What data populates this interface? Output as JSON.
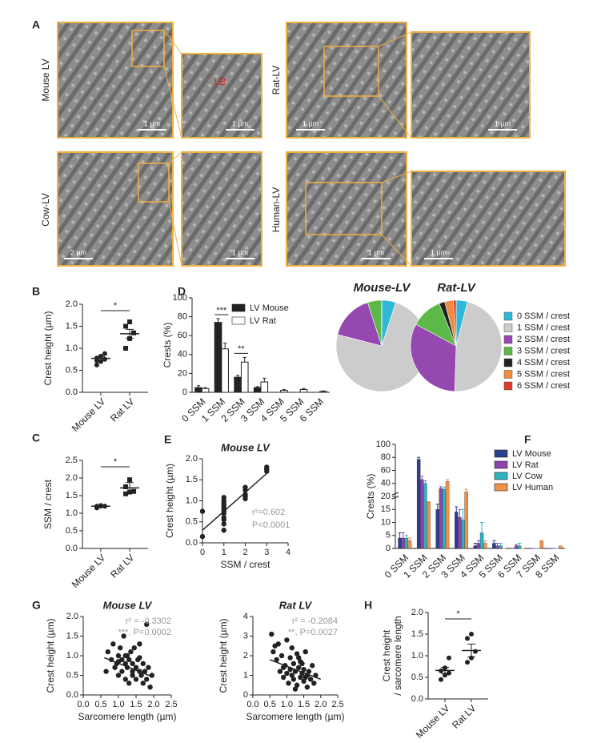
{
  "figure": {
    "panel": "A",
    "micrographs": [
      {
        "label": "Mouse LV",
        "scale_bars": [
          "1 µm",
          "1 µm"
        ],
        "inset_label": "LB"
      },
      {
        "label": "Rat-LV",
        "scale_bars": [
          "1 µm",
          "1 µm"
        ]
      },
      {
        "label": "Cow-LV",
        "scale_bars": [
          "2 µm",
          "1 µm"
        ]
      },
      {
        "label": "Human-LV",
        "scale_bars": [
          "1 µm",
          "1 µm"
        ]
      }
    ]
  },
  "chart_data": [
    {
      "panel": "B",
      "type": "dot",
      "ylabel": "Crest height (µm)",
      "categories": [
        "Mouse LV",
        "Rat LV"
      ],
      "points": [
        [
          0.62,
          0.7,
          0.75,
          0.78,
          0.82,
          0.88,
          0.72
        ],
        [
          1.0,
          1.22,
          1.35,
          1.5,
          1.6
        ]
      ],
      "means": [
        0.77,
        1.33
      ],
      "errors": [
        0.04,
        0.1
      ],
      "markers": [
        "circle",
        "square"
      ],
      "ylim": [
        0,
        2
      ],
      "yticks": [
        {
          "value": 0,
          "label": "0.0"
        },
        {
          "value": 0.5,
          "label": "0.5"
        },
        {
          "value": 1,
          "label": "1.0"
        },
        {
          "value": 1.5,
          "label": "1.5"
        },
        {
          "value": 2,
          "label": "2.0"
        }
      ],
      "significance": "*"
    },
    {
      "panel": "C",
      "type": "dot",
      "ylabel": "SSM / crest",
      "categories": [
        "Mouse LV",
        "Rat LV"
      ],
      "points": [
        [
          1.15,
          1.2,
          1.2,
          1.2,
          1.22,
          1.2
        ],
        [
          1.55,
          1.6,
          1.62,
          1.75,
          1.95
        ]
      ],
      "means": [
        1.2,
        1.72
      ],
      "errors": [
        0.02,
        0.15
      ],
      "markers": [
        "circle",
        "square"
      ],
      "ylim": [
        0,
        2.5
      ],
      "yticks": [
        {
          "value": 0,
          "label": "0.0"
        },
        {
          "value": 0.5,
          "label": "0.5"
        },
        {
          "value": 1,
          "label": "1.0"
        },
        {
          "value": 1.5,
          "label": "1.5"
        },
        {
          "value": 2,
          "label": "2.0"
        },
        {
          "value": 2.5,
          "label": "2.5"
        }
      ],
      "significance": "*"
    },
    {
      "panel": "D",
      "type": "bar",
      "ylabel": "Crests (%)",
      "categories": [
        "0 SSM",
        "1 SSM",
        "2 SSM",
        "3 SSM",
        "4 SSM",
        "5 SSM",
        "6 SSM"
      ],
      "series": [
        {
          "name": "LV Mouse",
          "color": "#222222",
          "values": [
            5,
            74,
            16,
            5,
            0,
            0,
            0
          ],
          "errors": [
            2,
            4,
            2,
            1,
            0,
            0,
            0
          ]
        },
        {
          "name": "LV Rat",
          "color": "#ffffff",
          "values": [
            4,
            46,
            32,
            11,
            2,
            3,
            1
          ],
          "errors": [
            1,
            6,
            5,
            4,
            1,
            1,
            0.5
          ]
        }
      ],
      "ylim": [
        0,
        100
      ],
      "yticks": [
        0,
        20,
        40,
        60,
        80,
        100
      ],
      "annotations": [
        {
          "category": "1 SSM",
          "text": "***"
        },
        {
          "category": "2 SSM",
          "text": "**"
        }
      ]
    },
    {
      "type": "pie",
      "categories": [
        "0 SSM / crest",
        "1 SSM / crest",
        "2 SSM / crest",
        "3 SSM / crest",
        "4 SSM / crest",
        "5 SSM / crest",
        "6 SSM / crest"
      ],
      "colors": [
        "#2fb8d8",
        "#cccccc",
        "#9448b0",
        "#5cb848",
        "#222222",
        "#f08a3c",
        "#e03a2a"
      ],
      "series": [
        {
          "name": "Mouse-LV",
          "values": [
            5,
            74,
            16,
            5,
            0,
            0,
            0
          ]
        },
        {
          "name": "Rat-LV",
          "values": [
            4,
            46,
            32,
            11,
            2,
            3,
            1
          ]
        }
      ]
    },
    {
      "panel": "E",
      "type": "scatter",
      "title": "Mouse LV",
      "xlabel": "SSM / crest",
      "ylabel": "Crest height (µm)",
      "x": [
        0,
        0,
        1,
        1,
        1,
        1,
        1,
        1,
        1,
        1,
        1,
        1,
        1,
        1,
        2,
        2,
        2,
        2,
        2,
        3,
        3,
        3
      ],
      "y": [
        0.15,
        0.75,
        0.3,
        0.45,
        0.55,
        0.6,
        0.7,
        0.75,
        0.8,
        0.85,
        0.9,
        0.95,
        1.0,
        1.08,
        1.05,
        1.1,
        1.15,
        1.25,
        1.32,
        1.7,
        1.75,
        1.8
      ],
      "fit": {
        "x": [
          0,
          3
        ],
        "y": [
          0.3,
          1.65
        ]
      },
      "xlim": [
        0,
        4
      ],
      "xticks": [
        0,
        1,
        2,
        3,
        4
      ],
      "ylim": [
        0,
        2
      ],
      "yticks": [
        {
          "value": 0,
          "label": "0.0"
        },
        {
          "value": 0.5,
          "label": "0.5"
        },
        {
          "value": 1,
          "label": "1.0"
        },
        {
          "value": 1.5,
          "label": "1.5"
        },
        {
          "value": 2,
          "label": "2.0"
        }
      ],
      "annotations": [
        "r²=0.602",
        "P<0.0001"
      ]
    },
    {
      "panel": "F",
      "type": "bar",
      "ylabel": "Crests (%)",
      "categories": [
        "0 SSM",
        "1 SSM",
        "2 SSM",
        "3 SSM",
        "4 SSM",
        "5 SSM",
        "6 SSM",
        "7 SSM",
        "8 SSM"
      ],
      "series": [
        {
          "name": "LV Mouse",
          "color": "#2c3e8f",
          "values": [
            4,
            77,
            15,
            14,
            1,
            2,
            0,
            0,
            0
          ],
          "errors": [
            2,
            3,
            2,
            2,
            1,
            1,
            0,
            0,
            0
          ]
        },
        {
          "name": "LV Rat",
          "color": "#8e44ad",
          "values": [
            4,
            46,
            32,
            12,
            2,
            1,
            1,
            0,
            0
          ],
          "errors": [
            2,
            5,
            3,
            3,
            1,
            1,
            0.5,
            0,
            0
          ]
        },
        {
          "name": "LV Cow",
          "color": "#2bb3c0",
          "values": [
            4,
            40,
            31,
            11,
            6,
            1,
            1,
            0,
            0
          ],
          "errors": [
            1,
            4,
            3,
            4,
            4,
            1,
            1,
            0,
            0
          ]
        },
        {
          "name": "LV Human",
          "color": "#f0914a",
          "values": [
            3,
            18,
            43,
            27,
            2,
            0,
            0,
            3,
            1
          ],
          "errors": [
            1,
            0,
            3,
            4,
            1,
            0,
            0,
            0,
            0
          ]
        }
      ],
      "ylim": [
        0,
        100
      ],
      "yticks": [
        0,
        5,
        10,
        15,
        20,
        40,
        60,
        80,
        100
      ],
      "axis_break": 20
    },
    {
      "panel": "G",
      "type": "scatter",
      "title": "Mouse LV",
      "xlabel": "Sarcomere length (µm)",
      "ylabel": "Crest height (µm)",
      "x": [
        0.65,
        0.7,
        0.8,
        0.85,
        0.9,
        0.95,
        1.0,
        1.0,
        1.05,
        1.1,
        1.1,
        1.15,
        1.2,
        1.2,
        1.25,
        1.25,
        1.3,
        1.3,
        1.35,
        1.4,
        1.4,
        1.45,
        1.5,
        1.5,
        1.55,
        1.6,
        1.6,
        1.65,
        1.7,
        1.7,
        1.75,
        1.8,
        1.8,
        1.85,
        1.9,
        1.95,
        1.2,
        1.4,
        1.0,
        1.6
      ],
      "y": [
        0.6,
        1.1,
        0.9,
        1.3,
        0.7,
        0.8,
        1.0,
        0.5,
        1.2,
        0.9,
        0.6,
        1.5,
        0.8,
        0.4,
        1.0,
        0.7,
        0.9,
        0.3,
        1.1,
        0.8,
        0.5,
        1.2,
        0.7,
        0.4,
        0.9,
        0.6,
        1.3,
        0.5,
        0.8,
        0.3,
        0.6,
        0.4,
        1.8,
        0.7,
        0.2,
        0.5,
        1.0,
        0.6,
        0.85,
        0.95
      ],
      "fit": {
        "x": [
          0.6,
          2.0
        ],
        "y": [
          0.95,
          0.45
        ]
      },
      "xlim": [
        0,
        2.5
      ],
      "xticks": [
        {
          "value": 0,
          "label": "0.0"
        },
        {
          "value": 0.5,
          "label": "0.5"
        },
        {
          "value": 1,
          "label": "1.0"
        },
        {
          "value": 1.5,
          "label": "1.5"
        },
        {
          "value": 2,
          "label": "2.0"
        },
        {
          "value": 2.5,
          "label": "2.5"
        }
      ],
      "ylim": [
        0,
        2
      ],
      "yticks": [
        {
          "value": 0,
          "label": "0.0"
        },
        {
          "value": 0.5,
          "label": "0.5"
        },
        {
          "value": 1,
          "label": "1.0"
        },
        {
          "value": 1.5,
          "label": "1.5"
        },
        {
          "value": 2,
          "label": "2.0"
        }
      ],
      "annotations": [
        "r² = -0.3302",
        "***, P=0.0002"
      ]
    },
    {
      "type": "scatter",
      "title": "Rat LV",
      "xlabel": "Sarcomere length (µm)",
      "ylabel": "Crest height (µm)",
      "x": [
        0.55,
        0.6,
        0.7,
        0.75,
        0.8,
        0.85,
        0.9,
        0.95,
        1.0,
        1.0,
        1.05,
        1.1,
        1.1,
        1.15,
        1.2,
        1.2,
        1.25,
        1.3,
        1.3,
        1.35,
        1.4,
        1.4,
        1.45,
        1.5,
        1.5,
        1.55,
        1.6,
        1.6,
        1.65,
        1.7,
        1.75,
        1.8,
        1.85,
        0.65,
        0.9,
        1.15,
        1.35,
        1.55,
        1.25,
        1.45
      ],
      "y": [
        3.1,
        2.2,
        1.8,
        2.6,
        1.2,
        2.0,
        0.9,
        1.5,
        2.8,
        1.1,
        0.6,
        1.9,
        1.3,
        2.4,
        0.8,
        1.6,
        1.2,
        2.1,
        0.5,
        1.4,
        0.9,
        1.7,
        1.1,
        0.7,
        1.3,
        2.2,
        0.4,
        1.0,
        1.2,
        0.8,
        1.5,
        0.6,
        1.0,
        2.5,
        1.4,
        1.0,
        1.9,
        0.9,
        0.3,
        1.6
      ],
      "fit": {
        "x": [
          0.5,
          2.0
        ],
        "y": [
          1.8,
          0.8
        ]
      },
      "xlim": [
        0,
        2.5
      ],
      "xticks": [
        {
          "value": 0,
          "label": "0.0"
        },
        {
          "value": 0.5,
          "label": "0.5"
        },
        {
          "value": 1,
          "label": "1.0"
        },
        {
          "value": 1.5,
          "label": "1.5"
        },
        {
          "value": 2,
          "label": "2.0"
        },
        {
          "value": 2.5,
          "label": "2.5"
        }
      ],
      "ylim": [
        0,
        4
      ],
      "yticks": [
        0,
        1,
        2,
        3,
        4
      ],
      "annotations": [
        "r² = -0.2084",
        "**, P=0.0027"
      ]
    },
    {
      "panel": "H",
      "type": "dot",
      "ylabel": [
        "Crest height",
        "/ sarcomere length"
      ],
      "categories": [
        "Mouse LV",
        "Rat LV"
      ],
      "points": [
        [
          0.45,
          0.55,
          0.6,
          0.65,
          0.72,
          0.95
        ],
        [
          0.85,
          0.95,
          1.1,
          1.4,
          1.5
        ]
      ],
      "means": [
        0.66,
        1.12
      ],
      "errors": [
        0.07,
        0.15
      ],
      "markers": [
        "circle",
        "circle"
      ],
      "ylim": [
        0,
        2
      ],
      "yticks": [
        {
          "value": 0,
          "label": "0.0"
        },
        {
          "value": 0.5,
          "label": "0.5"
        },
        {
          "value": 1,
          "label": "1.0"
        },
        {
          "value": 1.5,
          "label": "1.5"
        },
        {
          "value": 2,
          "label": "2.0"
        }
      ],
      "significance": "*"
    }
  ]
}
